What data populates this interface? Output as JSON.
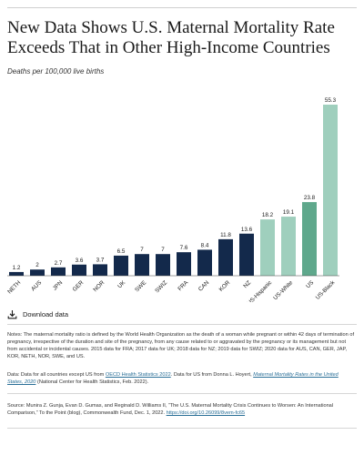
{
  "title": "New Data Shows U.S. Maternal Mortality Rate Exceeds That in Other High-Income Countries",
  "subtitle": "Deaths per 100,000 live births",
  "download_label": "Download data",
  "colors": {
    "navy": "#13294b",
    "light_green": "#9fcfbd",
    "teal_green": "#5fa88c",
    "link": "#2a6f97"
  },
  "chart_data": {
    "type": "bar",
    "title": "New Data Shows U.S. Maternal Mortality Rate Exceeds That in Other High-Income Countries",
    "ylabel": "Deaths per 100,000 live births",
    "ylim": [
      0,
      55.3
    ],
    "grid": false,
    "categories": [
      "NETH",
      "AUS",
      "JPN",
      "GER",
      "NOR",
      "UK",
      "SWE",
      "SWIZ",
      "FRA",
      "CAN",
      "KOR",
      "NZ",
      "US-Hispanic",
      "US-White",
      "US",
      "US-Black"
    ],
    "values": [
      1.2,
      2,
      2.7,
      3.6,
      3.7,
      6.5,
      7,
      7,
      7.6,
      8.4,
      11.8,
      13.6,
      18.2,
      19.1,
      23.8,
      55.3
    ],
    "value_labels": [
      "1.2",
      "2",
      "2.7",
      "3.6",
      "3.7",
      "6.5",
      "7",
      "7",
      "7.6",
      "8.4",
      "11.8",
      "13.6",
      "18.2",
      "19.1",
      "23.8",
      "55.3"
    ],
    "bar_colors": [
      "navy",
      "navy",
      "navy",
      "navy",
      "navy",
      "navy",
      "navy",
      "navy",
      "navy",
      "navy",
      "navy",
      "navy",
      "light_green",
      "light_green",
      "teal_green",
      "light_green"
    ]
  },
  "notes": {
    "notes_text": "Notes: The maternal mortality ratio is defined by the World Health Organization as the death of a woman while pregnant or within 42 days of termination of pregnancy, irrespective of the duration and site of the pregnancy, from any cause related to or aggravated by the pregnancy or its management but not from accidental or incidental causes. 2015 data for FRA; 2017 data for UK; 2018 data for NZ; 2019 data for SWIZ; 2020 data for AUS, CAN, GER, JAP, KOR, NETH, NOR, SWE, and US.",
    "data_prefix": "Data: Data for all countries except US from ",
    "data_link1": "OECD Health Statistics 2022",
    "data_middle": ". Data for US from Donna L. Hoyert, ",
    "data_link2": "Maternal Mortality Rates in the United States, 2020",
    "data_suffix": " (National Center for Health Statistics, Feb. 2022).",
    "source_text": "Source: Munira Z. Gunja, Evan D. Gumas, and Reginald D. Williams II, “The U.S. Maternal Mortality Crisis Continues to Worsen: An International Comparison,” To the Point (blog), Commonwealth Fund, Dec. 1, 2022. ",
    "source_link": "https://doi.org/10.26099/8vem-fc65"
  }
}
